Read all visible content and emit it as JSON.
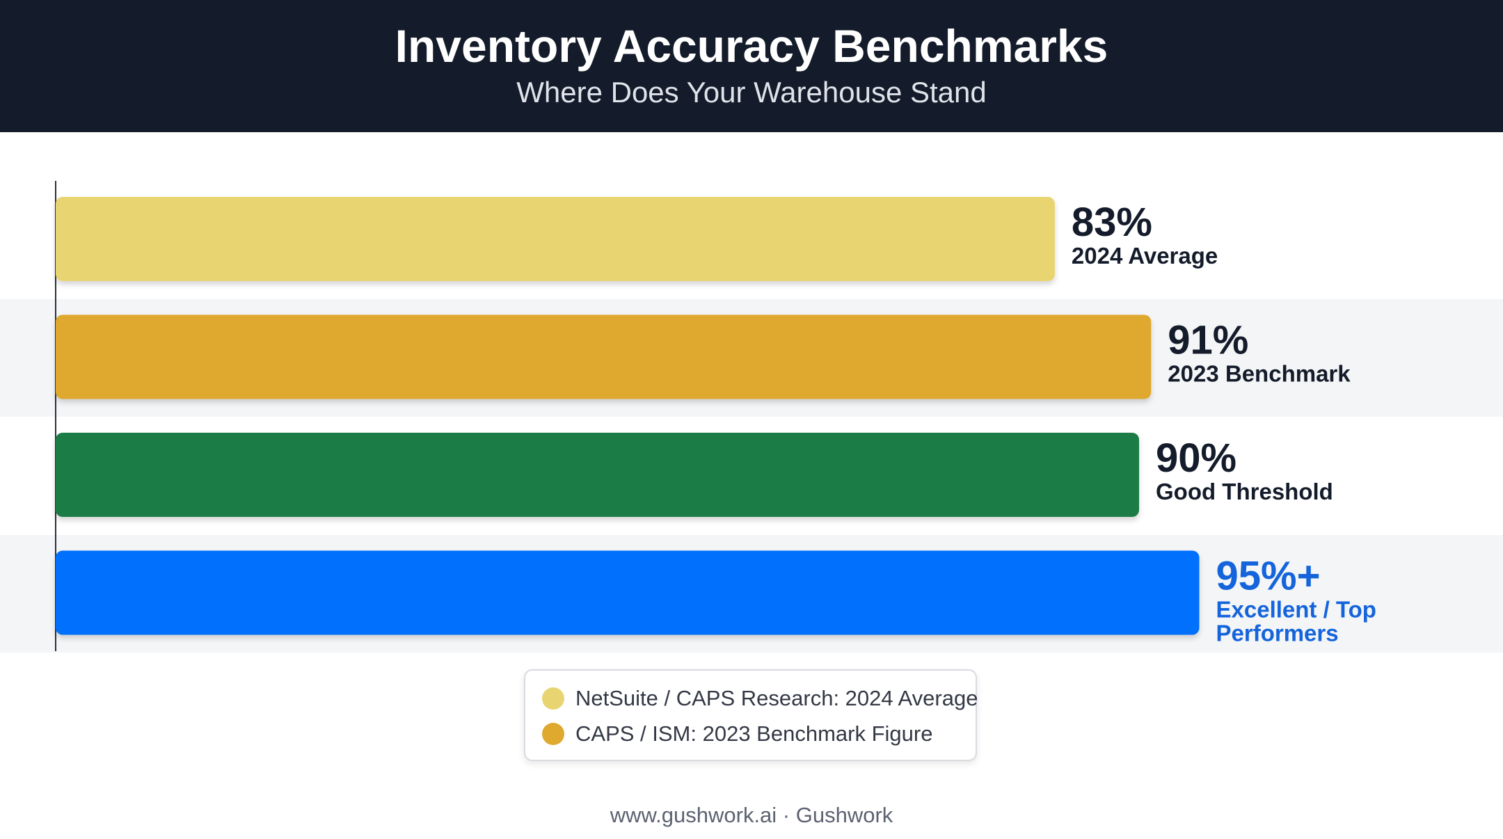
{
  "header": {
    "title": "Inventory Accuracy Benchmarks",
    "subtitle": "Where Does Your Warehouse Stand"
  },
  "chart_data": {
    "type": "bar",
    "orientation": "horizontal",
    "title": "Inventory Accuracy Benchmarks",
    "subtitle": "Where Does Your Warehouse Stand",
    "xlabel": "",
    "ylabel": "",
    "xlim": [
      0,
      100
    ],
    "grid": false,
    "legend_position": "bottom-center",
    "bars": [
      {
        "label": "2024 Average",
        "value_text": "83%",
        "value": 83,
        "color": "#e8d571",
        "label_color": "#141b2a"
      },
      {
        "label": "2023 Benchmark",
        "value_text": "91%",
        "value": 91,
        "color": "#dfa82f",
        "label_color": "#141b2a"
      },
      {
        "label": "Good Threshold",
        "value_text": "90%",
        "value": 90,
        "color": "#1e7b45",
        "label_color": "#141b2a"
      },
      {
        "label": "Excellent / Top Performers",
        "value_text": "95%+",
        "value": 95,
        "color": "#0670fd",
        "label_color": "#1464db"
      }
    ]
  },
  "legend": {
    "items": [
      {
        "label": "NetSuite / CAPS Research: 2024 Average",
        "color": "#e8d571"
      },
      {
        "label": "CAPS / ISM: 2023 Benchmark Figure",
        "color": "#dfa82f"
      }
    ]
  },
  "footer": {
    "text": "www.gushwork.ai · Gushwork"
  }
}
